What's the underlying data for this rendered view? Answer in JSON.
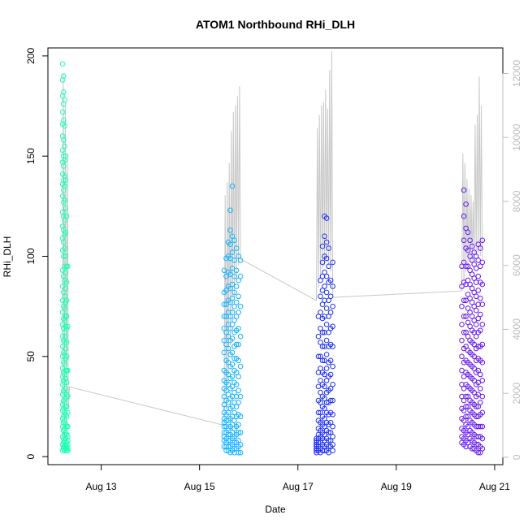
{
  "chart_data": {
    "type": "scatter",
    "title": "ATOM1 Northbound RHi_DLH",
    "xlabel": "Date",
    "ylabel": "RHi_DLH",
    "xlim": [
      "2020-08-11T22:00",
      "2020-08-21T04:00"
    ],
    "ylim": [
      -4,
      204
    ],
    "y2lim": [
      -230,
      12800
    ],
    "x_ticks": [
      {
        "value": "2020-08-13T00:00",
        "label": "Aug 13"
      },
      {
        "value": "2020-08-15T00:00",
        "label": "Aug 15"
      },
      {
        "value": "2020-08-17T00:00",
        "label": "Aug 17"
      },
      {
        "value": "2020-08-19T00:00",
        "label": "Aug 19"
      },
      {
        "value": "2020-08-21T00:00",
        "label": "Aug 21"
      }
    ],
    "y_ticks": [
      0,
      50,
      100,
      150,
      200
    ],
    "y2_ticks": [
      0,
      2000,
      4000,
      6000,
      8000,
      10000,
      12000
    ],
    "colors": {
      "series": [
        "#1effb4",
        "#12b4ff",
        "#1e32e8",
        "#6418f0"
      ],
      "secondary_line": "#c8c8c8",
      "axis": "#000000",
      "secondary_axis": "#bdbdbd"
    },
    "series": [
      {
        "color": "#1effb4",
        "x": [
          "2020-08-12T05:10",
          "2020-08-12T05:40",
          "2020-08-12T06:10",
          "2020-08-12T06:40",
          "2020-08-12T07:10",
          "2020-08-12T07:40"
        ],
        "y": [
          [
            196,
            188,
            180,
            172,
            166,
            160,
            153,
            147,
            141,
            136,
            130,
            122,
            115,
            109,
            103,
            93,
            85,
            78,
            72,
            66,
            60,
            55,
            50,
            44,
            40,
            36,
            31,
            26,
            23,
            19,
            15,
            10,
            6,
            3
          ],
          [
            190,
            182,
            176,
            168,
            158,
            150,
            145,
            138,
            133,
            127,
            120,
            113,
            107,
            100,
            90,
            82,
            75,
            69,
            64,
            58,
            52,
            47,
            42,
            38,
            33,
            28,
            24,
            20,
            17,
            13,
            9,
            7,
            5,
            4
          ],
          [
            178,
            165,
            155,
            148,
            140,
            135,
            128,
            118,
            111,
            104,
            95,
            88,
            80,
            74,
            68,
            62,
            57,
            51,
            46,
            41,
            37,
            32,
            27,
            22,
            18,
            14,
            11,
            8,
            5,
            3
          ],
          [
            150,
            138,
            124,
            112,
            100,
            92,
            84,
            77,
            70,
            65,
            60,
            54,
            49,
            43,
            39,
            34,
            29,
            25,
            21,
            16,
            12,
            9,
            6,
            4
          ],
          [
            120,
            95,
            87,
            78,
            70,
            64,
            57,
            50,
            43,
            37,
            31,
            25,
            20,
            15,
            11,
            7,
            5,
            3
          ],
          [
            95,
            65,
            43,
            30,
            22,
            15,
            10,
            8,
            6,
            4,
            3
          ]
        ]
      },
      {
        "color": "#12b4ff",
        "x": [
          "2020-08-15T12:00",
          "2020-08-15T13:00",
          "2020-08-15T14:00",
          "2020-08-15T15:00",
          "2020-08-15T16:00",
          "2020-08-15T17:00",
          "2020-08-15T18:00",
          "2020-08-15T19:00",
          "2020-08-15T20:00"
        ],
        "y": [
          [
            93,
            82,
            76,
            70,
            64,
            58,
            52,
            43,
            38,
            34,
            30,
            26,
            22,
            19,
            17,
            15,
            12,
            10,
            8,
            5
          ],
          [
            99,
            90,
            83,
            76,
            70,
            62,
            56,
            48,
            42,
            37,
            33,
            28,
            24,
            21,
            18,
            15,
            12,
            9,
            7,
            5,
            3
          ],
          [
            107,
            100,
            92,
            85,
            78,
            72,
            66,
            60,
            54,
            47,
            41,
            36,
            31,
            27,
            22,
            18,
            14,
            11,
            8,
            5,
            3
          ],
          [
            123,
            113,
            106,
            99,
            91,
            84,
            77,
            70,
            64,
            58,
            51,
            45,
            39,
            34,
            29,
            24,
            19,
            15,
            11,
            8,
            5,
            2
          ],
          [
            135,
            110,
            102,
            94,
            86,
            79,
            72,
            66,
            59,
            52,
            46,
            40,
            35,
            30,
            25,
            20,
            16,
            12,
            9,
            6,
            3
          ],
          [
            108,
            98,
            90,
            82,
            75,
            68,
            62,
            55,
            49,
            43,
            37,
            32,
            27,
            22,
            18,
            14,
            10,
            7,
            4,
            2
          ],
          [
            104,
            93,
            85,
            77,
            70,
            63,
            56,
            49,
            42,
            36,
            30,
            25,
            20,
            15,
            11,
            7,
            4
          ],
          [
            100,
            88,
            80,
            72,
            64,
            56,
            48,
            40,
            33,
            27,
            21,
            16,
            12,
            8,
            5,
            2
          ],
          [
            98,
            90,
            75,
            60,
            45,
            30,
            20,
            12,
            6,
            2
          ]
        ]
      },
      {
        "color": "#1e32e8",
        "x": [
          "2020-08-17T09:00",
          "2020-08-17T10:00",
          "2020-08-17T11:00",
          "2020-08-17T12:00",
          "2020-08-17T13:00",
          "2020-08-17T14:00",
          "2020-08-17T15:00",
          "2020-08-17T16:00",
          "2020-08-17T17:00"
        ],
        "y": [
          [
            9,
            8,
            7,
            6,
            5,
            4,
            3,
            2
          ],
          [
            70,
            60,
            50,
            42,
            35,
            28,
            22,
            18,
            14,
            11,
            9,
            7,
            5,
            3
          ],
          [
            88,
            80,
            72,
            64,
            57,
            50,
            44,
            38,
            32,
            27,
            22,
            17,
            13,
            10,
            7,
            4,
            2
          ],
          [
            105,
            97,
            90,
            83,
            76,
            69,
            62,
            55,
            48,
            42,
            36,
            30,
            25,
            20,
            16,
            12,
            9,
            6,
            3
          ],
          [
            120,
            110,
            100,
            92,
            85,
            78,
            70,
            62,
            55,
            48,
            41,
            35,
            29,
            24,
            19,
            15,
            11,
            8,
            5,
            3
          ],
          [
            119,
            107,
            99,
            90,
            82,
            74,
            66,
            58,
            51,
            44,
            38,
            32,
            27,
            22,
            17,
            13,
            9,
            6,
            3
          ],
          [
            104,
            95,
            87,
            78,
            70,
            62,
            55,
            47,
            40,
            33,
            27,
            21,
            16,
            12,
            8,
            5,
            2
          ],
          [
            88,
            80,
            72,
            64,
            56,
            48,
            41,
            34,
            28,
            22,
            17,
            12,
            8,
            5
          ],
          [
            97,
            85,
            75,
            65,
            55,
            45,
            36,
            28,
            21,
            15,
            10,
            6,
            3
          ]
        ]
      },
      {
        "color": "#6418f0",
        "x": [
          "2020-08-20T08:00",
          "2020-08-20T09:00",
          "2020-08-20T10:00",
          "2020-08-20T11:00",
          "2020-08-20T12:00",
          "2020-08-20T13:00",
          "2020-08-20T14:00",
          "2020-08-20T15:00",
          "2020-08-20T16:00",
          "2020-08-20T17:00",
          "2020-08-20T18:00"
        ],
        "y": [
          [
            95,
            85,
            75,
            66,
            58,
            50,
            43,
            36,
            30,
            24,
            19,
            14,
            10,
            7
          ],
          [
            133,
            120,
            108,
            97,
            87,
            78,
            70,
            62,
            54,
            47,
            40,
            34,
            28,
            23,
            18,
            13,
            9,
            6
          ],
          [
            126,
            114,
            104,
            95,
            86,
            78,
            70,
            62,
            55,
            48,
            42,
            36,
            30,
            25,
            20,
            16,
            12,
            8,
            5
          ],
          [
            112,
            103,
            95,
            88,
            81,
            74,
            67,
            60,
            53,
            47,
            41,
            35,
            30,
            25,
            20,
            15,
            11,
            7
          ],
          [
            108,
            100,
            93,
            86,
            79,
            72,
            65,
            58,
            52,
            46,
            40,
            34,
            28,
            23,
            18,
            13,
            9,
            5
          ],
          [
            105,
            98,
            91,
            84,
            77,
            70,
            63,
            57,
            51,
            45,
            39,
            33,
            27,
            22,
            17,
            12,
            8,
            4
          ],
          [
            102,
            96,
            89,
            82,
            75,
            68,
            62,
            56,
            50,
            44,
            38,
            32,
            26,
            21,
            16,
            11,
            7,
            4
          ],
          [
            100,
            94,
            87,
            80,
            73,
            66,
            60,
            54,
            48,
            42,
            36,
            30,
            25,
            20,
            15,
            10,
            6,
            3
          ],
          [
            106,
            98,
            90,
            83,
            76,
            69,
            62,
            55,
            49,
            43,
            37,
            31,
            25,
            20,
            15,
            10,
            6,
            2
          ],
          [
            104,
            95,
            87,
            79,
            71,
            63,
            55,
            48,
            41,
            34,
            27,
            21,
            15,
            10,
            5,
            2
          ],
          [
            108,
            97,
            86,
            76,
            66,
            56,
            47,
            38,
            30,
            22,
            15,
            9,
            4
          ]
        ]
      }
    ],
    "secondary_line": {
      "axis": "right",
      "x": [
        "2020-08-12T05:00",
        "2020-08-12T05:30",
        "2020-08-12T06:00",
        "2020-08-12T06:30",
        "2020-08-12T07:00",
        "2020-08-12T07:30",
        "2020-08-12T08:00",
        "2020-08-12T08:30",
        "2020-08-15T12:00",
        "2020-08-15T12:30",
        "2020-08-15T13:00",
        "2020-08-15T13:30",
        "2020-08-15T14:00",
        "2020-08-15T14:30",
        "2020-08-15T15:00",
        "2020-08-15T15:30",
        "2020-08-15T16:00",
        "2020-08-15T16:30",
        "2020-08-15T17:00",
        "2020-08-15T17:30",
        "2020-08-15T18:00",
        "2020-08-15T18:30",
        "2020-08-15T19:00",
        "2020-08-15T19:30",
        "2020-08-15T20:00",
        "2020-08-17T09:00",
        "2020-08-17T09:30",
        "2020-08-17T10:00",
        "2020-08-17T10:30",
        "2020-08-17T11:00",
        "2020-08-17T11:30",
        "2020-08-17T12:00",
        "2020-08-17T12:30",
        "2020-08-17T13:00",
        "2020-08-17T13:30",
        "2020-08-17T14:00",
        "2020-08-17T14:30",
        "2020-08-17T15:00",
        "2020-08-17T15:30",
        "2020-08-17T16:00",
        "2020-08-17T16:30",
        "2020-08-17T17:00",
        "2020-08-20T08:00",
        "2020-08-20T08:30",
        "2020-08-20T09:00",
        "2020-08-20T09:30",
        "2020-08-20T10:00",
        "2020-08-20T10:30",
        "2020-08-20T11:00",
        "2020-08-20T11:30",
        "2020-08-20T12:00",
        "2020-08-20T12:30",
        "2020-08-20T13:00",
        "2020-08-20T13:30",
        "2020-08-20T14:00",
        "2020-08-20T14:30",
        "2020-08-20T15:00",
        "2020-08-20T15:30",
        "2020-08-20T16:00",
        "2020-08-20T16:30",
        "2020-08-20T17:00",
        "2020-08-20T17:30",
        "2020-08-20T18:00"
      ],
      "y": [
        200,
        12000,
        500,
        11000,
        800,
        9500,
        1500,
        2200,
        1000,
        8200,
        1500,
        8600,
        2500,
        9200,
        3500,
        10200,
        4500,
        10800,
        5000,
        11000,
        5600,
        11300,
        6000,
        11600,
        6200,
        4900,
        10300,
        5300,
        10700,
        5600,
        11000,
        5900,
        11100,
        6000,
        11500,
        6100,
        10900,
        6000,
        12100,
        5800,
        12700,
        5000,
        5200,
        9500,
        5500,
        9200,
        5800,
        8700,
        6000,
        8400,
        6100,
        8200,
        6100,
        8000,
        6200,
        10400,
        6300,
        10700,
        6400,
        11900,
        6300,
        11000,
        6200
      ]
    }
  }
}
